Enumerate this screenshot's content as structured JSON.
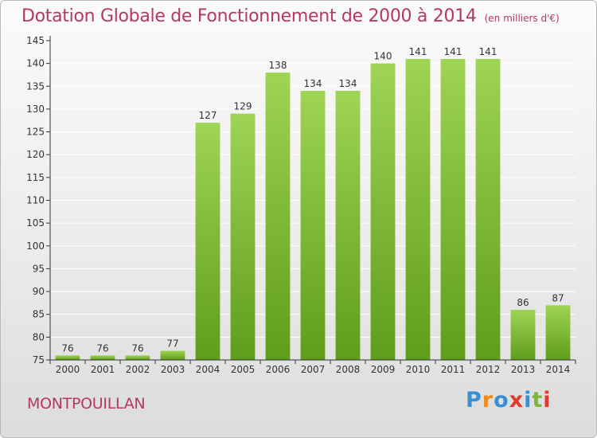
{
  "header": {
    "title": "Dotation Globale de Fonctionnement de 2000 à 2014",
    "unit": "(en milliers d'€)"
  },
  "footer": {
    "commune": "MONTPOUILLAN",
    "brand": "Proxiti"
  },
  "colors": {
    "accent": "#b5385f",
    "bar_top": "#9fd454",
    "bar_bottom": "#5e9d1a",
    "axis": "#333333",
    "grid": "#ffffff"
  },
  "chart_data": {
    "type": "bar",
    "title": "Dotation Globale de Fonctionnement de 2000 à 2014",
    "subtitle": "(en milliers d'€)",
    "categories": [
      "2000",
      "2001",
      "2002",
      "2003",
      "2004",
      "2005",
      "2006",
      "2007",
      "2008",
      "2009",
      "2010",
      "2011",
      "2012",
      "2013",
      "2014"
    ],
    "values": [
      76,
      76,
      76,
      77,
      127,
      129,
      138,
      134,
      134,
      140,
      141,
      141,
      141,
      86,
      87
    ],
    "ylim": [
      75,
      145
    ],
    "yticks": [
      75,
      80,
      85,
      90,
      95,
      100,
      105,
      110,
      115,
      120,
      125,
      130,
      135,
      140,
      145
    ],
    "grid": true,
    "data_labels": true
  }
}
